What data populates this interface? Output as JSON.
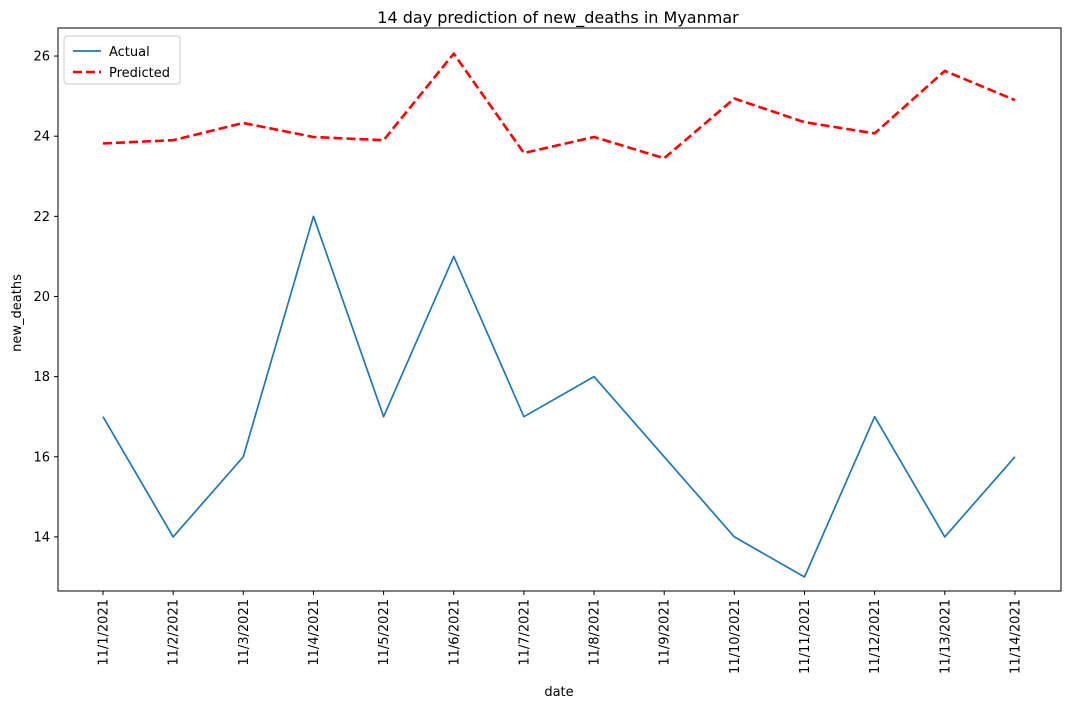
{
  "chart_data": {
    "type": "line",
    "title": "14 day prediction of new_deaths in Myanmar",
    "xlabel": "date",
    "ylabel": "new_deaths",
    "categories": [
      "11/1/2021",
      "11/2/2021",
      "11/3/2021",
      "11/4/2021",
      "11/5/2021",
      "11/6/2021",
      "11/7/2021",
      "11/8/2021",
      "11/9/2021",
      "11/10/2021",
      "11/11/2021",
      "11/12/2021",
      "11/13/2021",
      "11/14/2021"
    ],
    "series": [
      {
        "name": "Actual",
        "values": [
          17,
          14,
          16,
          22,
          17,
          21,
          17,
          18,
          16,
          14,
          13,
          17,
          14,
          16
        ],
        "color": "#1f77b4",
        "style": "solid"
      },
      {
        "name": "Predicted",
        "values": [
          23.82,
          23.9,
          24.33,
          23.98,
          23.9,
          26.06,
          23.58,
          23.98,
          23.45,
          24.94,
          24.35,
          24.07,
          25.63,
          24.9
        ],
        "color": "#ff0000",
        "style": "dashed"
      }
    ],
    "ylim": [
      12.65,
      26.7
    ],
    "yticks": [
      14,
      16,
      18,
      20,
      22,
      24,
      26
    ],
    "legend_position": "top-left",
    "grid": false
  }
}
